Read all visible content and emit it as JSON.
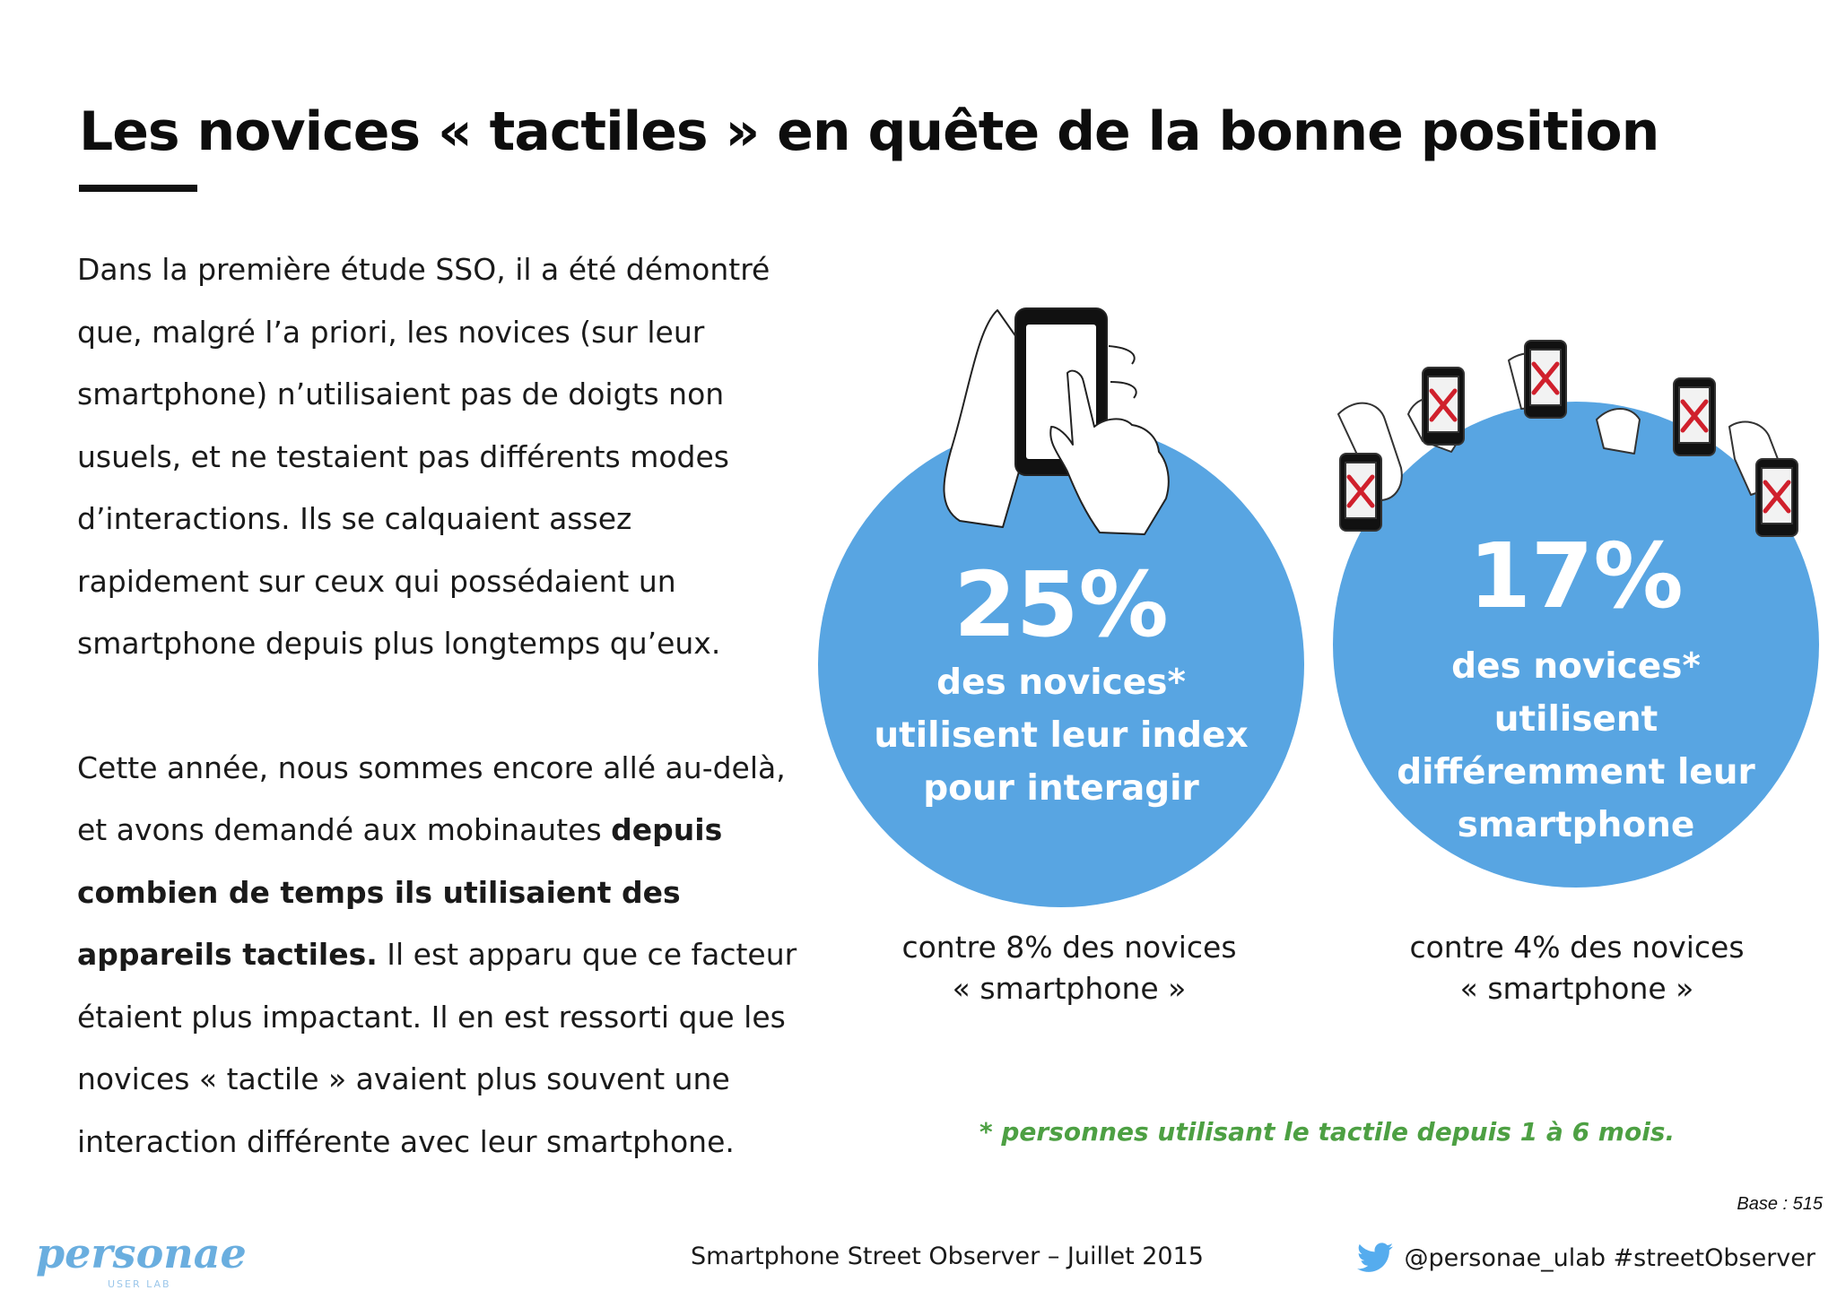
{
  "header": {
    "title": "Les novices « tactiles » en quête de la bonne position"
  },
  "body": {
    "paragraph1": "Dans la première étude SSO, il a été démontré que, malgré l’a priori, les novices (sur leur smartphone) n’utilisaient pas de doigts non usuels, et ne testaient pas différents modes d’interactions. Ils se calquaient assez rapidement sur ceux qui possédaient un smartphone depuis plus longtemps qu’eux.",
    "paragraph2_start": "Cette année, nous sommes encore allé au-delà, et avons demandé aux mobinautes",
    "paragraph2_bold": "depuis combien de temps ils utilisaient des appareils tactiles.",
    "paragraph2_end": "Il est apparu que ce facteur étaient plus impactant. Il en est ressorti que les novices « tactile » avaient plus souvent une interaction différente avec leur smartphone."
  },
  "stats": [
    {
      "percent": "25%",
      "description": "des novices* utilisent leur index pour interagir",
      "comparison_line1": "contre 8% des novices",
      "comparison_line2": "« smartphone »"
    },
    {
      "percent": "17%",
      "description": "des novices* utilisent différemment leur smartphone",
      "comparison_line1": "contre 4% des novices",
      "comparison_line2": "« smartphone »"
    }
  ],
  "footnote": "* personnes utilisant le tactile depuis 1 à 6 mois.",
  "base": "Base : 515",
  "footer": {
    "logo_text": "personae",
    "logo_subtext": "USER LAB",
    "center": "Smartphone Street Observer – Juillet 2015",
    "right": "@personae_ulab #streetObserver"
  },
  "colors": {
    "circle": "#58a5e2",
    "footnote": "#4da043",
    "x_mark": "#d0202c",
    "logo": "#6aaedf",
    "twitter": "#55acee"
  },
  "icons": {
    "hand_phone_illustration": "hand-holding-phone-icon",
    "multi_phones_illustration": "multiple-phones-x-icon",
    "twitter": "twitter-bird-icon"
  }
}
